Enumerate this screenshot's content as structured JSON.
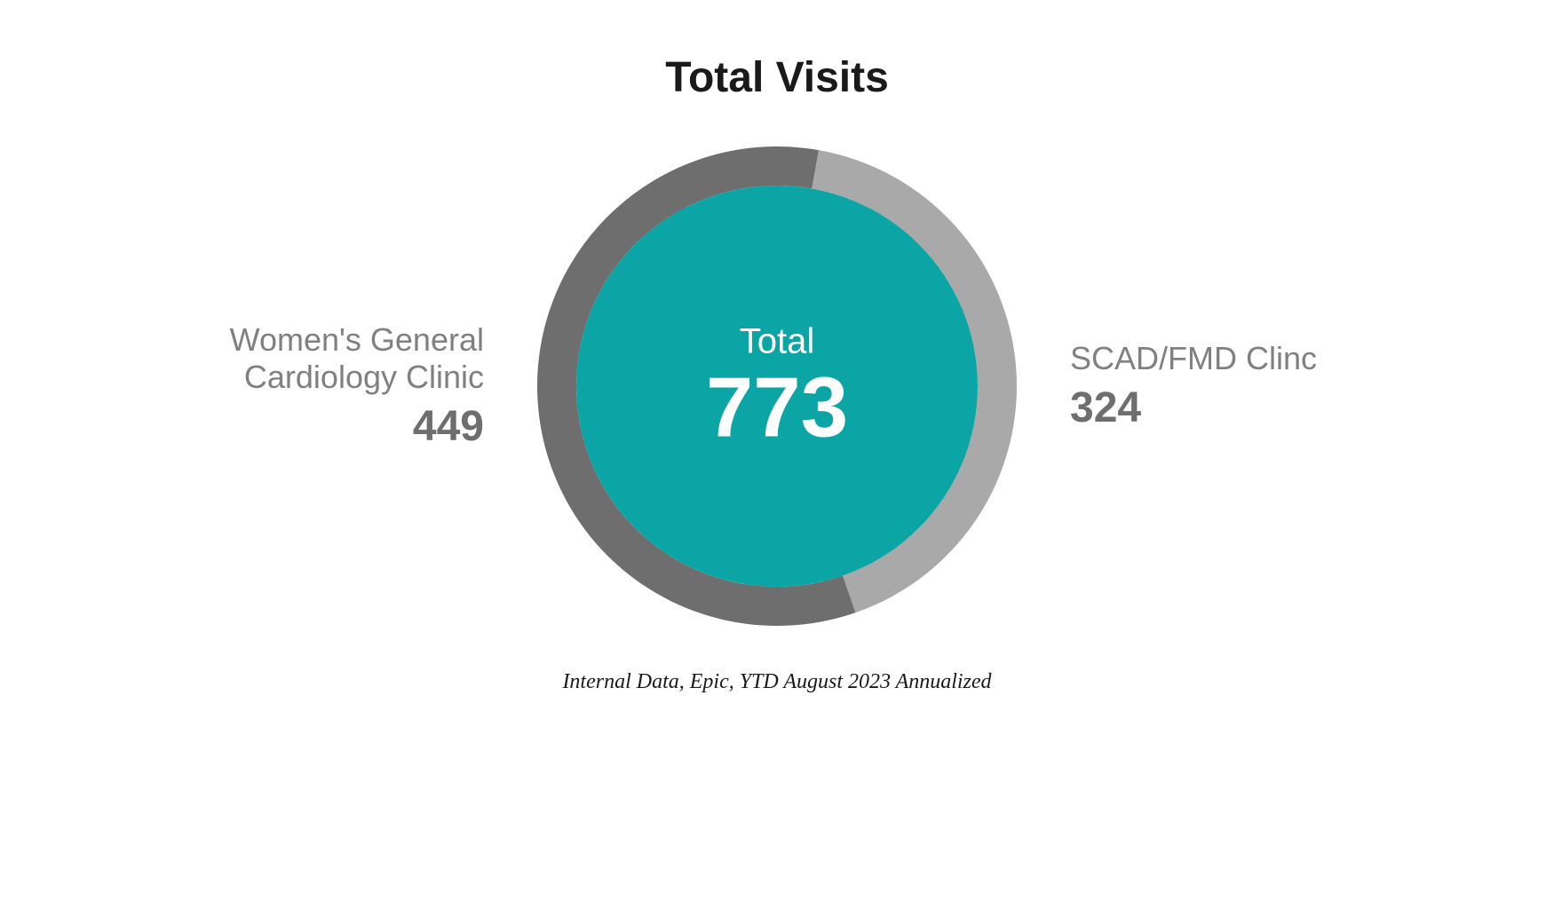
{
  "chart": {
    "type": "donut",
    "title": "Total Visits",
    "center_label": "Total",
    "center_value": "773",
    "segments": [
      {
        "name": "Women's General Cardiology Clinic",
        "value": 449,
        "color": "#6e6e6e"
      },
      {
        "name": "SCAD/FMD Clinc",
        "value": 324,
        "color": "#a9a9a9"
      }
    ],
    "inner_fill_color": "#0ba5a5",
    "outer_radius": 270,
    "ring_width": 44,
    "background_color": "#ffffff",
    "title_fontsize": 48,
    "title_color": "#1a1a1a",
    "label_fontsize": 36,
    "label_color": "#808080",
    "value_fontsize": 48,
    "value_color": "#6e6e6e",
    "center_label_fontsize": 40,
    "center_value_fontsize": 96,
    "center_text_color": "#ffffff"
  },
  "left_label": {
    "line1": "Women's General",
    "line2": "Cardiology Clinic",
    "value": "449"
  },
  "right_label": {
    "line1": "SCAD/FMD Clinc",
    "value": "324"
  },
  "footer": "Internal Data, Epic, YTD August 2023 Annualized"
}
